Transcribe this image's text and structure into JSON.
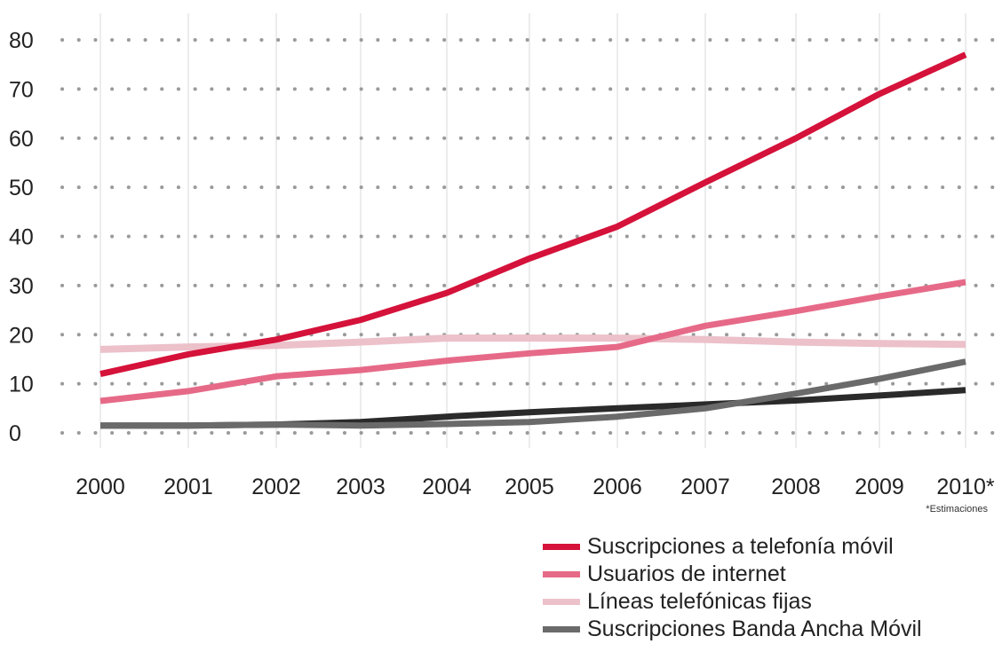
{
  "chart_data": {
    "type": "line",
    "x": [
      "2000",
      "2001",
      "2002",
      "2003",
      "2004",
      "2005",
      "2006",
      "2007",
      "2008",
      "2009",
      "2010*"
    ],
    "ylim": [
      0,
      80
    ],
    "yticks": [
      "0",
      "10",
      "20",
      "30",
      "40",
      "50",
      "60",
      "70",
      "80"
    ],
    "grid": "dotted horizontal, solid vertical",
    "legend_placement": "bottom-right",
    "footnote": "*Estimaciones",
    "series": [
      {
        "name": "Suscripciones a telefonía móvil",
        "color": "#d5123a",
        "values": [
          12,
          16,
          19,
          23,
          28.5,
          35.5,
          42,
          51,
          60,
          69,
          77
        ]
      },
      {
        "name": "Usuarios de internet",
        "color": "#e66a88",
        "values": [
          6.5,
          8.5,
          11.5,
          12.8,
          14.7,
          16.2,
          17.5,
          21.8,
          24.8,
          27.8,
          30.7
        ]
      },
      {
        "name": "Líneas telefónicas fijas",
        "color": "#ecc1ca",
        "values": [
          17,
          17.5,
          17.8,
          18.5,
          19.3,
          19.3,
          19.3,
          19,
          18.5,
          18.2,
          18
        ]
      },
      {
        "name": "Suscripciones Banda Ancha Móvil",
        "color": "#6a6a6a",
        "values": [
          1.5,
          1.5,
          1.7,
          1.5,
          1.8,
          2.2,
          3.3,
          5,
          8,
          11,
          14.5
        ]
      },
      {
        "name": "",
        "color": "#2a2a2a",
        "values": [
          1.5,
          1.5,
          1.7,
          2.2,
          3.3,
          4.2,
          5,
          5.8,
          6.6,
          7.6,
          8.7
        ]
      }
    ]
  }
}
